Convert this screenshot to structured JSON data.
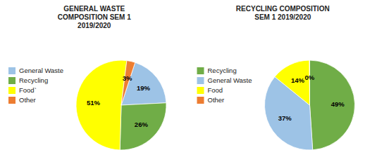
{
  "chart_data": [
    {
      "type": "pie",
      "title": "GENERAL WASTE\nCOMPOSITION SEM 1\n2019/2020",
      "categories": [
        "General Waste",
        "Recycling",
        "Food`",
        "Other"
      ],
      "values": [
        19,
        26,
        51,
        3
      ],
      "value_labels": [
        "19%",
        "26%",
        "51%",
        "3%"
      ],
      "colors": [
        "#9DC3E6",
        "#70AD47",
        "#FFFF00",
        "#ED7D31"
      ],
      "data_labels": true,
      "legend": "left"
    },
    {
      "type": "pie",
      "title": "RECYCLING COMPOSITION\nSEM 1 2019/2020",
      "categories": [
        "Recycling",
        "General Waste",
        "Food",
        "Other"
      ],
      "values": [
        49,
        37,
        14,
        0.1
      ],
      "value_labels": [
        "49%",
        "37%",
        "14%",
        "0%"
      ],
      "colors": [
        "#70AD47",
        "#9DC3E6",
        "#FFFF00",
        "#ED7D31"
      ],
      "data_labels": true,
      "legend": "left"
    }
  ]
}
